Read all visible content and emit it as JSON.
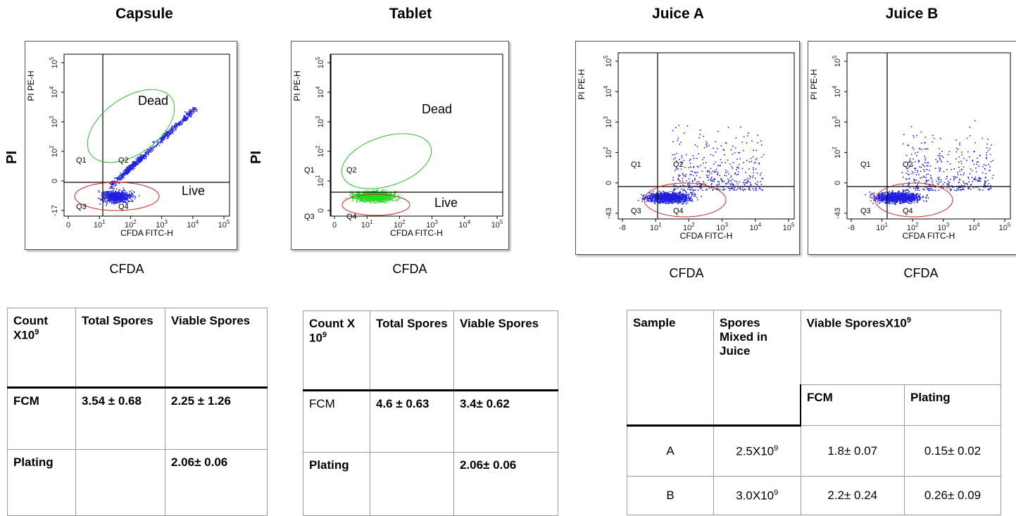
{
  "panels": [
    {
      "id": "capsule",
      "title": "Capsule",
      "ylabel": "PI",
      "xlabel": "CFDA",
      "y_axis_title": "PI PE-H",
      "x_axis_title": "CFDA FITC-H",
      "yticks": [
        "10^5",
        "10^4",
        "10^3",
        "10^2",
        "0",
        "-17"
      ],
      "xticks": [
        "0",
        "10^1",
        "10^2",
        "10^3",
        "10^4",
        "10^5"
      ],
      "quadrants": [
        "Q1",
        "Q2",
        "Q3",
        "Q4"
      ],
      "annotations": [
        "Dead",
        "Live"
      ],
      "point_color": "#1f1fe0"
    },
    {
      "id": "tablet",
      "title": "Tablet",
      "ylabel": "PI",
      "xlabel": "CFDA",
      "y_axis_title": "PI PE-H",
      "x_axis_title": "CFDA FITC-H",
      "yticks": [
        "10^5",
        "10^4",
        "10^3",
        "10^2",
        "10^1",
        "0"
      ],
      "xticks": [
        "0",
        "10^1",
        "10^2",
        "10^3",
        "10^4",
        "10^5"
      ],
      "quadrants": [
        "Q1",
        "Q2",
        "Q3",
        "Q4"
      ],
      "annotations": [
        "Dead",
        "Live"
      ],
      "point_color": "#22dd22"
    },
    {
      "id": "juicea",
      "title": "Juice A",
      "ylabel": "",
      "xlabel": "CFDA",
      "y_axis_title": "PI PE-H",
      "x_axis_title": "CFDA FITC-H",
      "yticks": [
        "10^5",
        "10^4",
        "10^3",
        "10^2",
        "0",
        "-43"
      ],
      "xticks": [
        "-8",
        "10^1",
        "10^2",
        "10^3",
        "10^4",
        "10^5"
      ],
      "quadrants": [
        "Q1",
        "Q2",
        "Q3",
        "Q4"
      ],
      "annotations": [],
      "point_color": "#1f1fe0"
    },
    {
      "id": "juiceb",
      "title": "Juice B",
      "ylabel": "",
      "xlabel": "CFDA",
      "y_axis_title": "PI PE-H",
      "x_axis_title": "CFDA FITC-H",
      "yticks": [
        "10^5",
        "10^4",
        "10^3",
        "10^2",
        "0",
        "-43"
      ],
      "xticks": [
        "-8",
        "10^1",
        "10^2",
        "10^3",
        "10^4",
        "10^5"
      ],
      "quadrants": [
        "Q1",
        "Q2",
        "Q3",
        "Q4"
      ],
      "annotations": [],
      "point_color": "#1f1fe0"
    }
  ],
  "tables": {
    "capsule": {
      "headers": [
        "Count X10",
        "9",
        "Total Spores",
        "Viable Spores"
      ],
      "rows": [
        [
          "FCM",
          "3.54 ± 0.68",
          "2.25 ± 1.26"
        ],
        [
          "Plating",
          "",
          "2.06± 0.06"
        ]
      ]
    },
    "tablet": {
      "headers": [
        "Count X 10",
        "9",
        "Total Spores",
        "Viable Spores"
      ],
      "rows": [
        [
          "FCM",
          "4.6 ± 0.63",
          "3.4± 0.62"
        ],
        [
          "Plating",
          "",
          "2.06± 0.06"
        ]
      ]
    },
    "juice": {
      "headers": [
        "Sample",
        "Spores Mixed in Juice",
        "Viable SporesX10",
        "9",
        "FCM",
        "Plating"
      ],
      "rows": [
        [
          "A",
          "2.5X10",
          "9",
          "1.8± 0.07",
          "0.15± 0.02"
        ],
        [
          "B",
          "3.0X10",
          "9",
          "2.2± 0.24",
          "0.26± 0.09"
        ]
      ]
    }
  },
  "chart_data": [
    {
      "type": "scatter",
      "title": "Capsule",
      "xlabel": "CFDA",
      "ylabel": "PI",
      "xscale": "log",
      "yscale": "log",
      "quadrant_gate": {
        "x": 150,
        "y": 100
      },
      "populations": [
        {
          "name": "Dead",
          "region": "Q2"
        },
        {
          "name": "Live",
          "region": "Q4"
        }
      ],
      "results": {
        "FCM_total": "3.54 ± 0.68",
        "FCM_viable": "2.25 ± 1.26",
        "Plating_viable": "2.06± 0.06"
      }
    },
    {
      "type": "scatter",
      "title": "Tablet",
      "xlabel": "CFDA",
      "ylabel": "PI",
      "xscale": "log",
      "yscale": "log",
      "quadrant_gate": {
        "x": 30,
        "y": 40
      },
      "populations": [
        {
          "name": "Dead",
          "region": "Q2"
        },
        {
          "name": "Live",
          "region": "Q4"
        }
      ],
      "results": {
        "FCM_total": "4.6 ± 0.63",
        "FCM_viable": "3.4± 0.62",
        "Plating_viable": "2.06± 0.06"
      }
    },
    {
      "type": "scatter",
      "title": "Juice A",
      "xlabel": "CFDA",
      "xscale": "log",
      "yscale": "log",
      "quadrant_gate": {
        "x": 150,
        "y": 90
      },
      "results": {
        "spores_mixed": "2.5X10^9",
        "FCM": "1.8± 0.07",
        "Plating": "0.15± 0.02"
      }
    },
    {
      "type": "scatter",
      "title": "Juice B",
      "xlabel": "CFDA",
      "xscale": "log",
      "yscale": "log",
      "quadrant_gate": {
        "x": 150,
        "y": 90
      },
      "results": {
        "spores_mixed": "3.0X10^9",
        "FCM": "2.2± 0.24",
        "Plating": "0.26± 0.09"
      }
    }
  ]
}
